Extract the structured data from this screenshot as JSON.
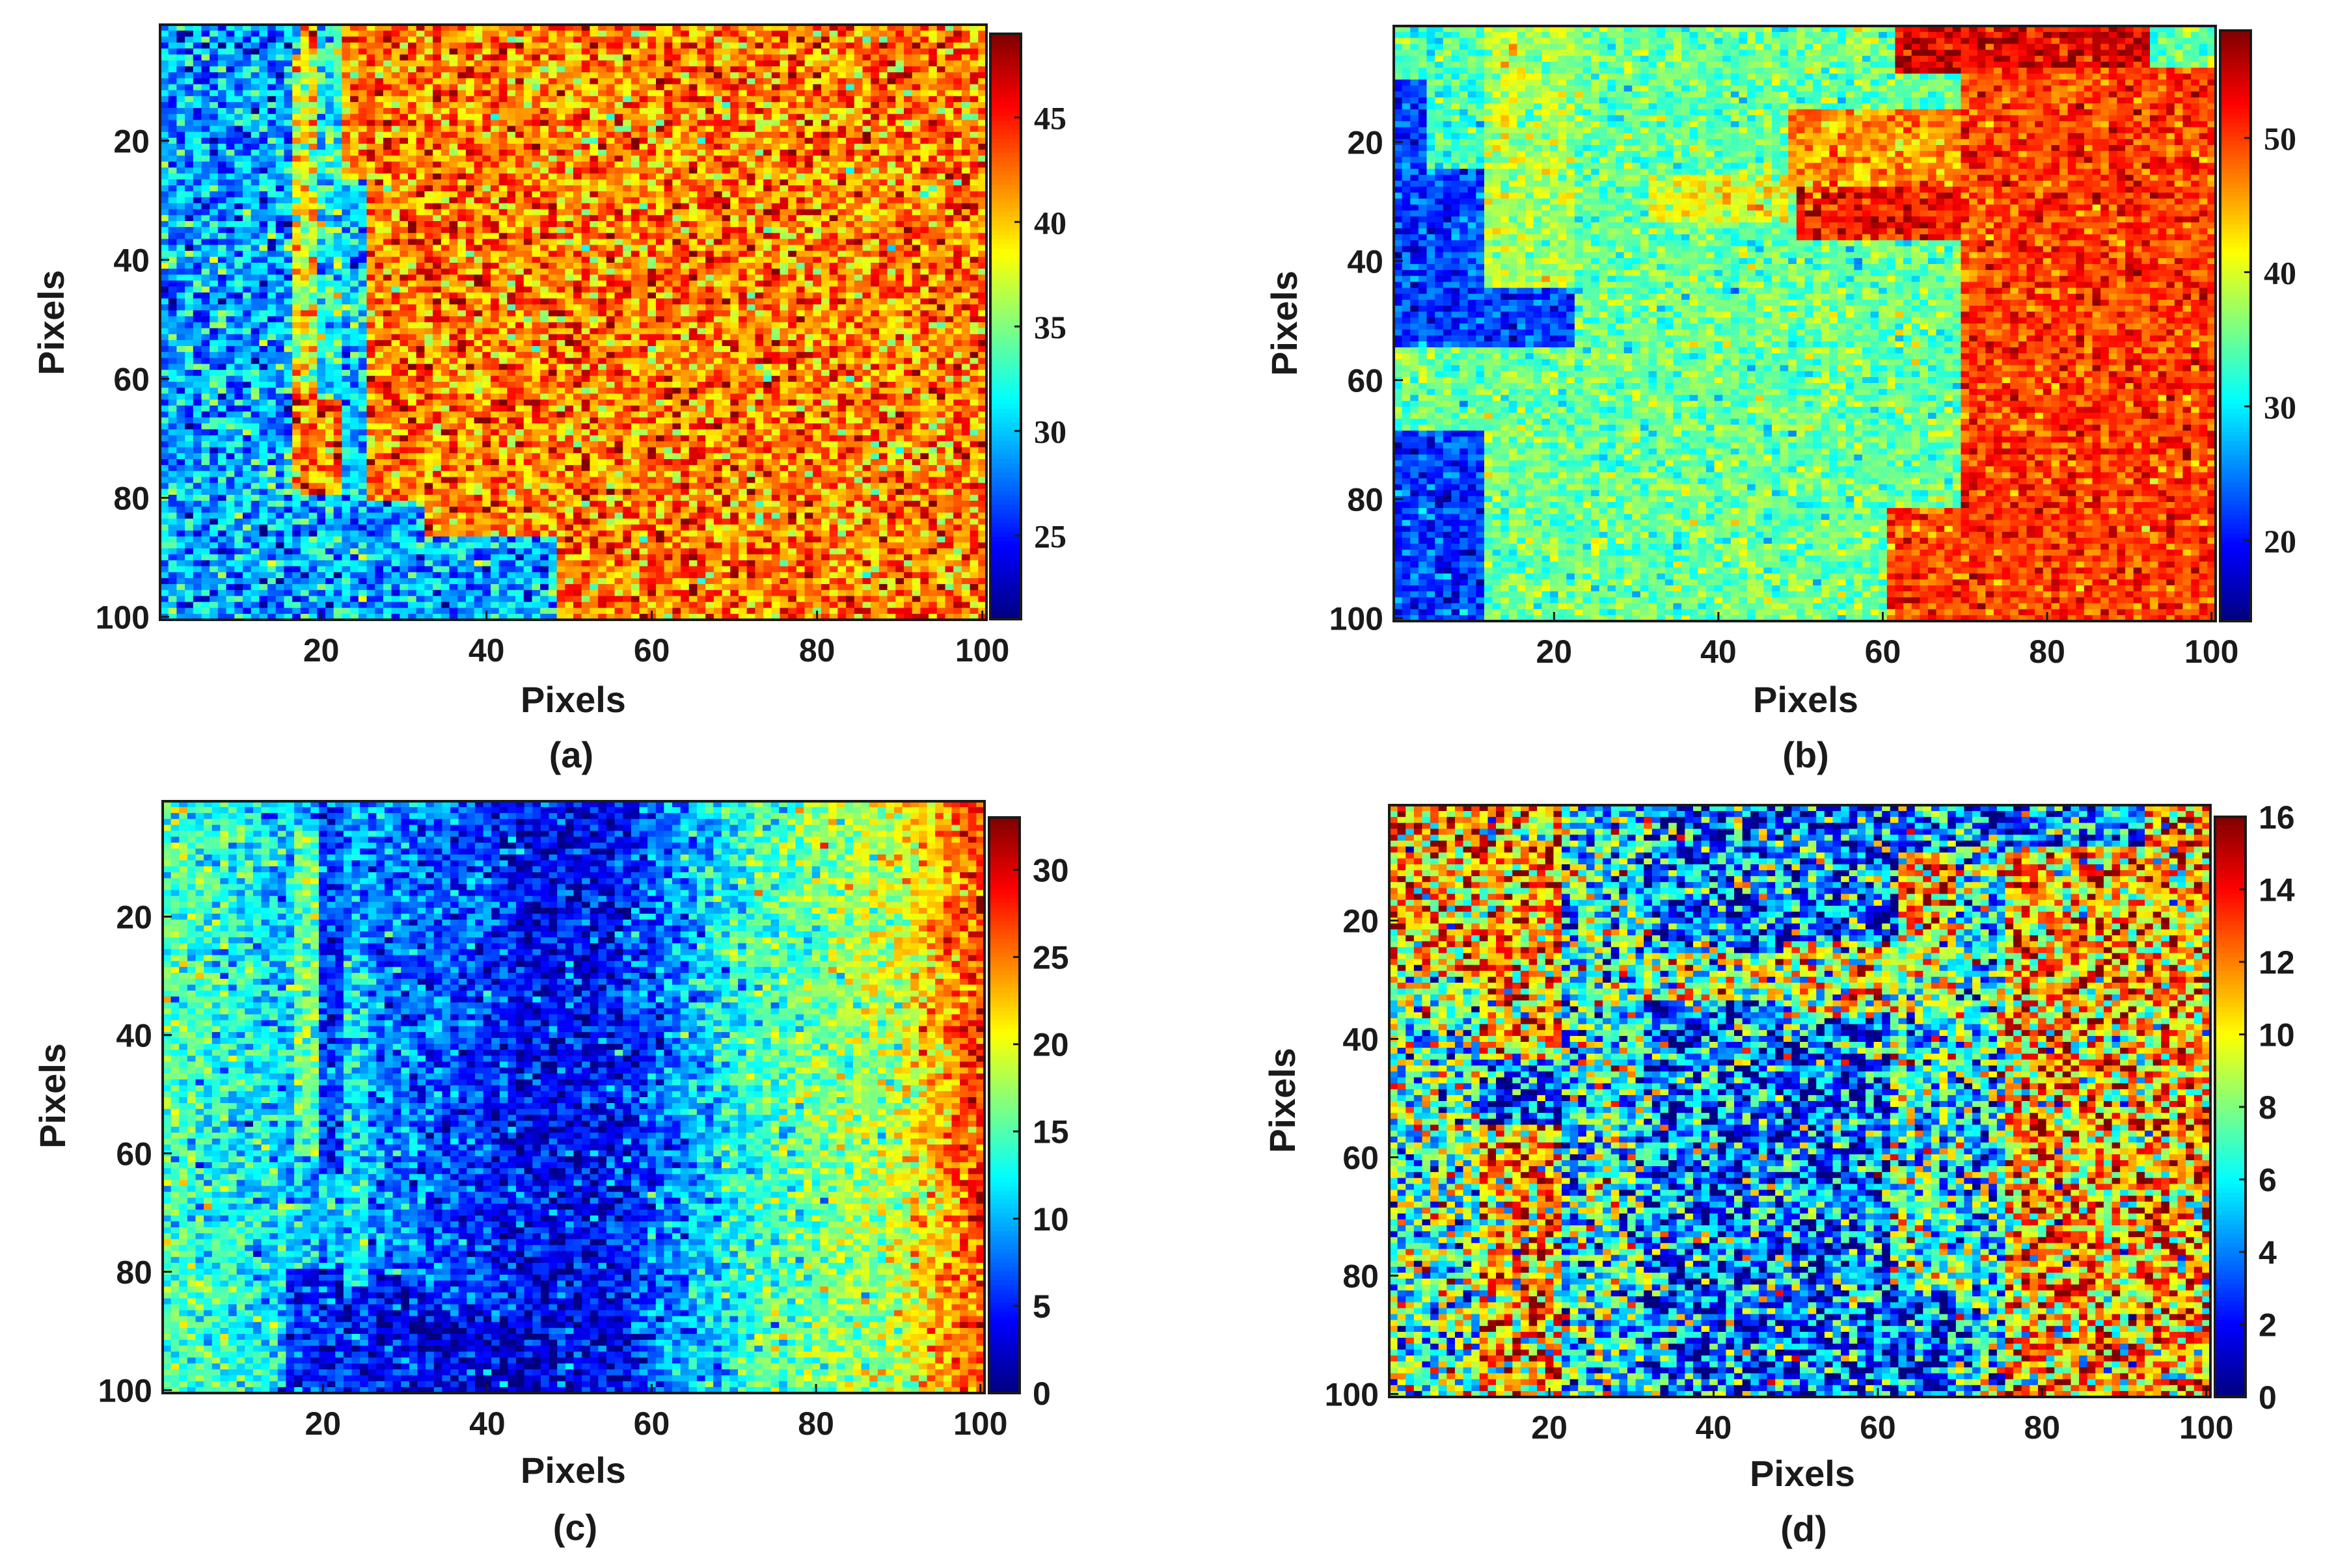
{
  "figure": {
    "panels": [
      "a",
      "b",
      "c",
      "d"
    ]
  },
  "chart_data": [
    {
      "id": "a",
      "type": "heatmap",
      "caption": "(a)",
      "xlabel": "Pixels",
      "ylabel": "Pixels",
      "grid_size": [
        100,
        100
      ],
      "x_ticks": [
        "20",
        "40",
        "60",
        "80",
        "100"
      ],
      "x_tick_values": [
        20,
        40,
        60,
        80,
        100
      ],
      "y_ticks": [
        "20",
        "40",
        "60",
        "80",
        "100"
      ],
      "y_tick_values": [
        20,
        40,
        60,
        80,
        100
      ],
      "colormap": "jet",
      "clim": [
        21,
        49
      ],
      "colorbar_ticks": [
        "25",
        "30",
        "35",
        "40",
        "45"
      ],
      "colorbar_tick_values": [
        25,
        30,
        35,
        40,
        45
      ],
      "colorbar_font": "serif",
      "noise": 3.2,
      "regions": [
        {
          "value": 42,
          "x": [
            1,
            100
          ],
          "y": [
            1,
            100
          ]
        },
        {
          "value": 29,
          "x": [
            1,
            16
          ],
          "y": [
            1,
            100
          ]
        },
        {
          "value": 29,
          "x": [
            16,
            25
          ],
          "y": [
            80,
            100
          ]
        },
        {
          "value": 29,
          "x": [
            25,
            32
          ],
          "y": [
            81,
            100
          ]
        },
        {
          "value": 29,
          "x": [
            32,
            48
          ],
          "y": [
            87,
            100
          ]
        },
        {
          "value": 30,
          "x": [
            16,
            17
          ],
          "y": [
            1,
            8
          ]
        },
        {
          "value": 38,
          "x": [
            17,
            19
          ],
          "y": [
            6,
            60
          ]
        },
        {
          "value": 32,
          "x": [
            20,
            22
          ],
          "y": [
            1,
            63
          ]
        },
        {
          "value": 30,
          "x": [
            23,
            25
          ],
          "y": [
            27,
            82
          ]
        }
      ]
    },
    {
      "id": "b",
      "type": "heatmap",
      "caption": "(b)",
      "xlabel": "Pixels",
      "ylabel": "Pixels",
      "grid_size": [
        100,
        100
      ],
      "x_ticks": [
        "20",
        "40",
        "60",
        "80",
        "100"
      ],
      "x_tick_values": [
        20,
        40,
        60,
        80,
        100
      ],
      "y_ticks": [
        "20",
        "40",
        "60",
        "80",
        "100"
      ],
      "y_tick_values": [
        20,
        40,
        60,
        80,
        100
      ],
      "colormap": "jet",
      "clim": [
        14,
        58
      ],
      "colorbar_ticks": [
        "20",
        "30",
        "40",
        "50"
      ],
      "colorbar_tick_values": [
        20,
        30,
        40,
        50
      ],
      "colorbar_font": "serif",
      "noise": 3.0,
      "regions": [
        {
          "value": 35,
          "x": [
            1,
            100
          ],
          "y": [
            1,
            100
          ]
        },
        {
          "value": 33,
          "x": [
            1,
            12
          ],
          "y": [
            1,
            25
          ]
        },
        {
          "value": 22,
          "x": [
            1,
            4
          ],
          "y": [
            10,
            25
          ]
        },
        {
          "value": 22,
          "x": [
            1,
            12
          ],
          "y": [
            25,
            44
          ]
        },
        {
          "value": 22,
          "x": [
            1,
            22
          ],
          "y": [
            44,
            54
          ]
        },
        {
          "value": 22,
          "x": [
            1,
            11
          ],
          "y": [
            69,
            100
          ]
        },
        {
          "value": 38,
          "x": [
            12,
            22
          ],
          "y": [
            1,
            44
          ]
        },
        {
          "value": 41,
          "x": [
            32,
            48
          ],
          "y": [
            26,
            33
          ]
        },
        {
          "value": 46,
          "x": [
            49,
            70
          ],
          "y": [
            15,
            28
          ]
        },
        {
          "value": 52,
          "x": [
            50,
            70
          ],
          "y": [
            28,
            36
          ]
        },
        {
          "value": 54,
          "x": [
            62,
            92
          ],
          "y": [
            1,
            8
          ]
        },
        {
          "value": 50,
          "x": [
            70,
            100
          ],
          "y": [
            8,
            100
          ]
        },
        {
          "value": 50,
          "x": [
            61,
            70
          ],
          "y": [
            82,
            100
          ]
        }
      ]
    },
    {
      "id": "c",
      "type": "heatmap",
      "caption": "(c)",
      "xlabel": "Pixels",
      "ylabel": "Pixels",
      "grid_size": [
        100,
        100
      ],
      "x_ticks": [
        "20",
        "40",
        "60",
        "80",
        "100"
      ],
      "x_tick_values": [
        20,
        40,
        60,
        80,
        100
      ],
      "y_ticks": [
        "20",
        "40",
        "60",
        "80",
        "100"
      ],
      "y_tick_values": [
        20,
        40,
        60,
        80,
        100
      ],
      "colormap": "jet",
      "clim": [
        0,
        33
      ],
      "colorbar_ticks": [
        "0",
        "5",
        "10",
        "15",
        "20",
        "25",
        "30"
      ],
      "colorbar_tick_values": [
        0,
        5,
        10,
        15,
        20,
        25,
        30
      ],
      "colorbar_font": "sans",
      "noise": 3.0,
      "gradient": {
        "x": [
          1,
          20,
          30,
          45,
          55,
          70,
          90,
          100
        ],
        "v": [
          15,
          10,
          8,
          4,
          4,
          13,
          19,
          27
        ]
      },
      "regions": [
        {
          "value": 5,
          "x": [
            16,
            25
          ],
          "y": [
            80,
            100
          ]
        },
        {
          "value": 4,
          "x": [
            25,
            32
          ],
          "y": [
            81,
            100
          ]
        },
        {
          "value": 3,
          "x": [
            32,
            48
          ],
          "y": [
            87,
            100
          ]
        },
        {
          "value": 16,
          "x": [
            17,
            19
          ],
          "y": [
            6,
            60
          ]
        },
        {
          "value": 6,
          "x": [
            20,
            22
          ],
          "y": [
            1,
            63
          ]
        },
        {
          "value": 12,
          "x": [
            23,
            25
          ],
          "y": [
            27,
            82
          ]
        }
      ]
    },
    {
      "id": "d",
      "type": "heatmap",
      "caption": "(d)",
      "xlabel": "Pixels",
      "ylabel": "Pixels",
      "grid_size": [
        100,
        100
      ],
      "x_ticks": [
        "20",
        "40",
        "60",
        "80",
        "100"
      ],
      "x_tick_values": [
        20,
        40,
        60,
        80,
        100
      ],
      "y_ticks": [
        "20",
        "40",
        "60",
        "80",
        "100"
      ],
      "y_tick_values": [
        20,
        40,
        60,
        80,
        100
      ],
      "colormap": "jet",
      "clim": [
        0,
        16
      ],
      "colorbar_ticks": [
        "0",
        "2",
        "4",
        "6",
        "8",
        "10",
        "12",
        "14",
        "16"
      ],
      "colorbar_tick_values": [
        0,
        2,
        4,
        6,
        8,
        10,
        12,
        14,
        16
      ],
      "colorbar_font": "sans",
      "noise": 3.4,
      "regions": [
        {
          "value": 11,
          "x": [
            1,
            100
          ],
          "y": [
            1,
            100
          ]
        },
        {
          "value": 7,
          "x": [
            1,
            12
          ],
          "y": [
            30,
            100
          ]
        },
        {
          "value": 11,
          "x": [
            12,
            22
          ],
          "y": [
            1,
            100
          ]
        },
        {
          "value": 3,
          "x": [
            12,
            22
          ],
          "y": [
            44,
            54
          ]
        },
        {
          "value": 6,
          "x": [
            22,
            32
          ],
          "y": [
            1,
            100
          ]
        },
        {
          "value": 4,
          "x": [
            32,
            62
          ],
          "y": [
            1,
            100
          ]
        },
        {
          "value": 9,
          "x": [
            32,
            48
          ],
          "y": [
            26,
            33
          ]
        },
        {
          "value": 9,
          "x": [
            49,
            70
          ],
          "y": [
            24,
            36
          ]
        },
        {
          "value": 7,
          "x": [
            62,
            70
          ],
          "y": [
            36,
            82
          ]
        },
        {
          "value": 3,
          "x": [
            61,
            70
          ],
          "y": [
            82,
            100
          ]
        },
        {
          "value": 4,
          "x": [
            62,
            92
          ],
          "y": [
            1,
            8
          ]
        },
        {
          "value": 6,
          "x": [
            70,
            76
          ],
          "y": [
            8,
            100
          ]
        },
        {
          "value": 11,
          "x": [
            76,
            100
          ],
          "y": [
            8,
            100
          ]
        }
      ]
    }
  ]
}
